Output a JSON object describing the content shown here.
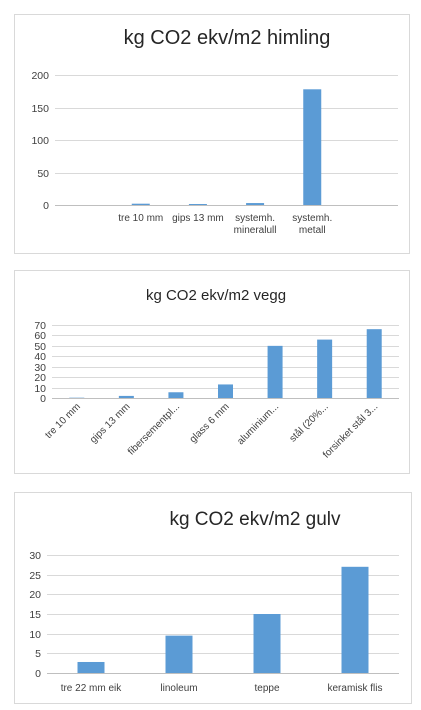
{
  "chart_data": [
    {
      "type": "bar",
      "title": "kg CO2 ekv/m2 himling",
      "categories": [
        "",
        "tre 10 mm",
        "gips 13 mm",
        "systemh. mineralull",
        "systemh. metall",
        ""
      ],
      "category_lines": [
        [
          ""
        ],
        [
          "tre 10 mm"
        ],
        [
          "gips 13 mm"
        ],
        [
          "systemh.",
          "mineralull"
        ],
        [
          "systemh.",
          "metall"
        ],
        [
          ""
        ]
      ],
      "values": [
        0,
        2,
        1.5,
        3,
        178,
        0
      ],
      "ylim": [
        0,
        200
      ],
      "yticks": [
        "0",
        "50",
        "100",
        "150",
        "200"
      ],
      "grid": true,
      "bar_color": "#5b9bd5"
    },
    {
      "type": "bar",
      "title": "kg CO2 ekv/m2  vegg",
      "categories": [
        "tre 10 mm",
        "gips 13 mm",
        "fibersementpl...",
        "glass 6 mm",
        "aluminium...",
        "stål (20%...",
        "forsinket stål 3..."
      ],
      "values": [
        0.3,
        2,
        5.5,
        13,
        50,
        56,
        66
      ],
      "ylim": [
        0,
        70
      ],
      "yticks": [
        "0",
        "10",
        "20",
        "30",
        "40",
        "50",
        "60",
        "70"
      ],
      "grid": true,
      "bar_color": "#5b9bd5"
    },
    {
      "type": "bar",
      "title": "kg CO2 ekv/m2 gulv",
      "categories": [
        "tre 22 mm eik",
        "linoleum",
        "teppe",
        "keramisk flis"
      ],
      "values": [
        2.8,
        9.5,
        15,
        27
      ],
      "ylim": [
        0,
        30
      ],
      "yticks": [
        "0",
        "5",
        "10",
        "15",
        "20",
        "25",
        "30"
      ],
      "grid": true,
      "bar_color": "#5b9bd5"
    }
  ]
}
